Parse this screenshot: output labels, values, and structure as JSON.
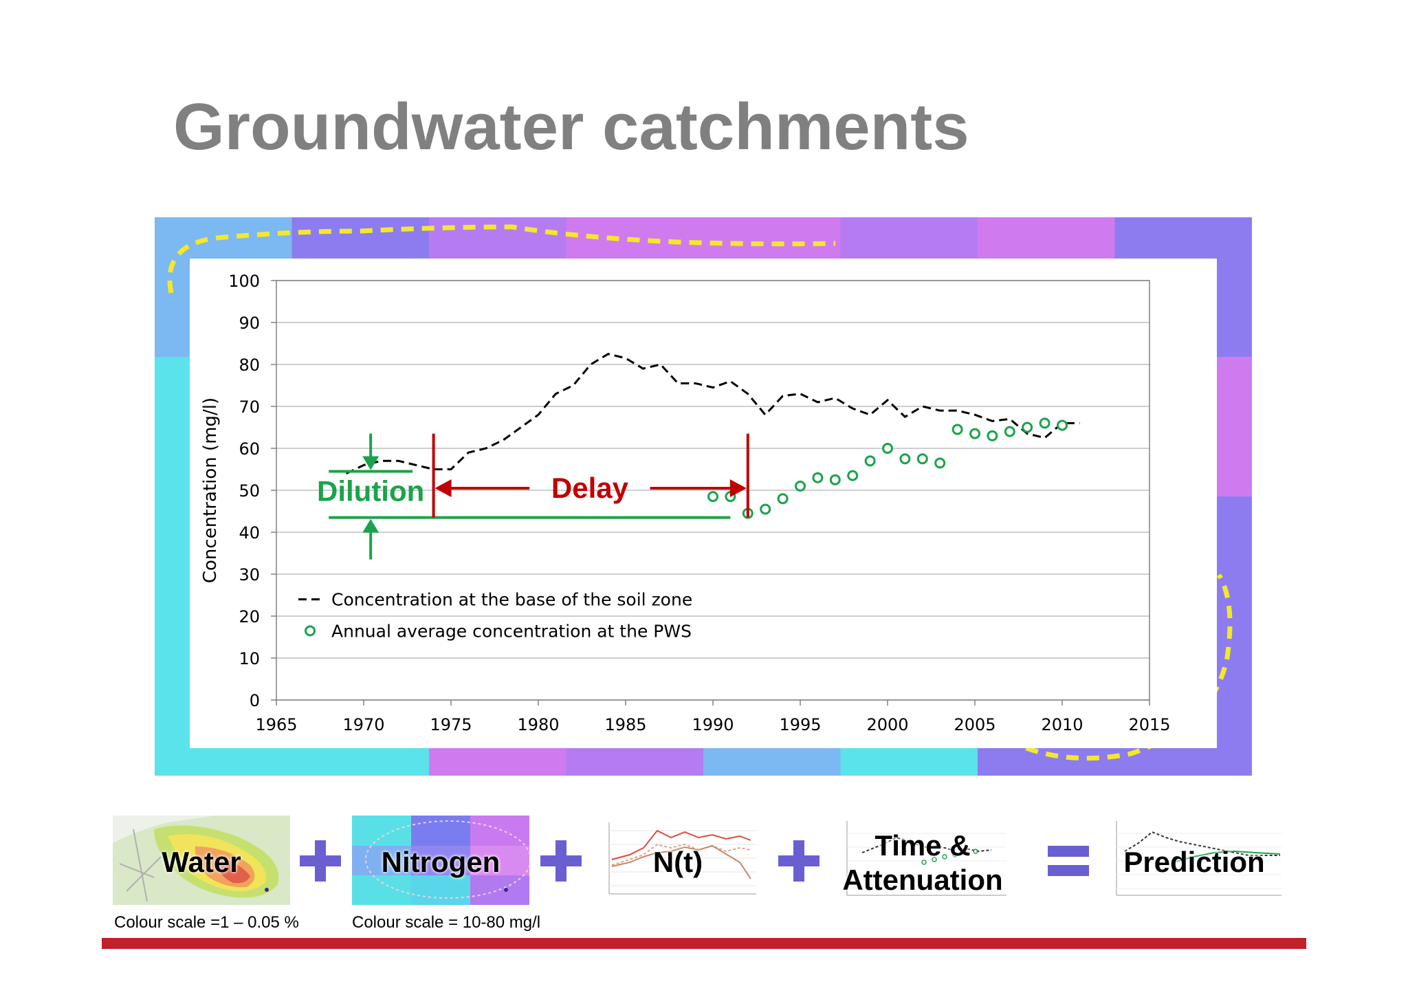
{
  "slide": {
    "title": "Groundwater catchments"
  },
  "colors": {
    "title": "#808080",
    "dashed_series": "#000000",
    "pws_series": "#1aa34a",
    "delay": "#c00000",
    "dilution": "#1aa34a",
    "operator": "#6a5fd0",
    "footer_bar": "#c0202a",
    "catchment_boundary": "#f5e829"
  },
  "chart_data": {
    "type": "line",
    "title": "",
    "xlabel": "",
    "ylabel": "Concentration (mg/l)",
    "xlim": [
      1965,
      2015
    ],
    "ylim": [
      0,
      100
    ],
    "x_ticks": [
      1965,
      1970,
      1975,
      1980,
      1985,
      1990,
      1995,
      2000,
      2005,
      2010,
      2015
    ],
    "y_ticks": [
      0,
      10,
      20,
      30,
      40,
      50,
      60,
      70,
      80,
      90,
      100
    ],
    "grid": "horizontal",
    "legend_position": "bottom-left",
    "series": [
      {
        "name": "Concentration at the base of the soil zone",
        "style": "dashed-line",
        "x": [
          1969,
          1970,
          1971,
          1972,
          1973,
          1974,
          1975,
          1976,
          1977,
          1978,
          1979,
          1980,
          1981,
          1982,
          1983,
          1984,
          1985,
          1986,
          1987,
          1988,
          1989,
          1990,
          1991,
          1992,
          1993,
          1994,
          1995,
          1996,
          1997,
          1998,
          1999,
          2000,
          2001,
          2002,
          2003,
          2004,
          2005,
          2006,
          2007,
          2008,
          2009,
          2010,
          2011
        ],
        "values": [
          54,
          56,
          57,
          57,
          56,
          55,
          55,
          59,
          60,
          62,
          65,
          68,
          73,
          75,
          80,
          82.5,
          81.5,
          79,
          80,
          75.5,
          75.5,
          74.5,
          76,
          73,
          68,
          72.5,
          73,
          71,
          72,
          69.5,
          68,
          71.5,
          67.5,
          70,
          69,
          69,
          68,
          66.5,
          67,
          63.5,
          62.5,
          66,
          66
        ]
      },
      {
        "name": "Annual average concentration at the PWS",
        "style": "open-circles",
        "x": [
          1990,
          1991,
          1992,
          1993,
          1994,
          1995,
          1996,
          1997,
          1998,
          1999,
          2000,
          2001,
          2002,
          2003,
          2004,
          2005,
          2006,
          2007,
          2008,
          2009,
          2010
        ],
        "values": [
          48.5,
          48.5,
          44.5,
          45.5,
          48,
          51,
          53,
          52.5,
          53.5,
          57,
          60,
          57.5,
          57.5,
          56.5,
          64.5,
          63.5,
          63,
          64,
          65,
          66,
          65.5
        ]
      }
    ],
    "annotations": {
      "delay": {
        "label": "Delay",
        "x_from": 1974,
        "x_to": 1992
      },
      "dilution": {
        "label": "Dilution",
        "y_from": 44,
        "y_to": 55
      }
    }
  },
  "bottom_panels": [
    {
      "label": "Water",
      "caption": "Colour scale =1 – 0.05 %"
    },
    {
      "label": "Nitrogen",
      "caption": "Colour scale = 10-80 mg/l"
    },
    {
      "label": "N(t)"
    },
    {
      "label": "Time &",
      "label2": "Attenuation"
    },
    {
      "label": "Prediction"
    }
  ],
  "operators": [
    "plus",
    "plus",
    "plus",
    "plus",
    "equals"
  ]
}
